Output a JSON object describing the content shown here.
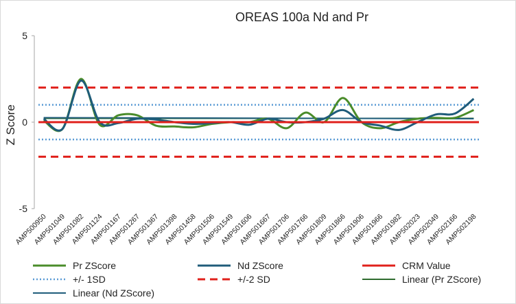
{
  "chart_data": {
    "type": "line",
    "title": "OREAS 100a Nd and Pr",
    "ylabel": "Z Score",
    "xlabel": "",
    "ylim": [
      -5,
      5
    ],
    "yticks": [
      5,
      0,
      -5
    ],
    "grid": false,
    "legend_position": "bottom",
    "categories": [
      "AMP500950",
      "AMP501049",
      "AMP501082",
      "AMP501124",
      "AMP501167",
      "AMP501267",
      "AMP501367",
      "AMP501398",
      "AMP501458",
      "AMP501506",
      "AMP501549",
      "AMP501606",
      "AMP501667",
      "AMP501706",
      "AMP501766",
      "AMP501809",
      "AMP501866",
      "AMP501906",
      "AMP501966",
      "AMP501982",
      "AMP502023",
      "AMP502049",
      "AMP502166",
      "AMP502198"
    ],
    "series": [
      {
        "name": "Pr ZScore",
        "color": "#4a8c2a",
        "style": "solid",
        "width": 3,
        "values": [
          0.1,
          -0.4,
          2.5,
          -0.15,
          0.4,
          0.4,
          -0.2,
          -0.25,
          -0.3,
          -0.1,
          0.0,
          0.0,
          0.2,
          -0.35,
          0.55,
          0.0,
          1.4,
          0.0,
          -0.35,
          0.0,
          0.2,
          0.25,
          0.25,
          0.7
        ]
      },
      {
        "name": "Nd ZScore",
        "color": "#1f5c7a",
        "style": "solid",
        "width": 3,
        "values": [
          0.2,
          -0.4,
          2.4,
          0.0,
          -0.05,
          0.2,
          0.15,
          0.0,
          -0.1,
          -0.05,
          0.0,
          -0.15,
          0.2,
          0.0,
          0.0,
          0.2,
          0.7,
          0.0,
          -0.2,
          -0.45,
          0.0,
          0.45,
          0.5,
          1.35
        ]
      },
      {
        "name": "CRM Value",
        "color": "#e0201b",
        "style": "solid",
        "width": 3,
        "values": [
          0,
          0,
          0,
          0,
          0,
          0,
          0,
          0,
          0,
          0,
          0,
          0,
          0,
          0,
          0,
          0,
          0,
          0,
          0,
          0,
          0,
          0,
          0,
          0
        ]
      },
      {
        "name": "+/- 1SD",
        "color": "#5b9bd5",
        "style": "dotted",
        "width": 2.5,
        "values_upper": 1,
        "values_lower": -1
      },
      {
        "name": "+/-2 SD",
        "color": "#e0201b",
        "style": "dashed",
        "width": 3,
        "values_upper": 2,
        "values_lower": -2
      },
      {
        "name": "Linear (Pr ZScore)",
        "color": "#2e6b2e",
        "style": "solid",
        "width": 2,
        "trend_start": 0.22,
        "trend_end": 0.22
      },
      {
        "name": "Linear (Nd ZScore)",
        "color": "#1f5c7a",
        "style": "solid",
        "width": 2,
        "trend_start": 0.26,
        "trend_end": 0.2
      }
    ]
  }
}
